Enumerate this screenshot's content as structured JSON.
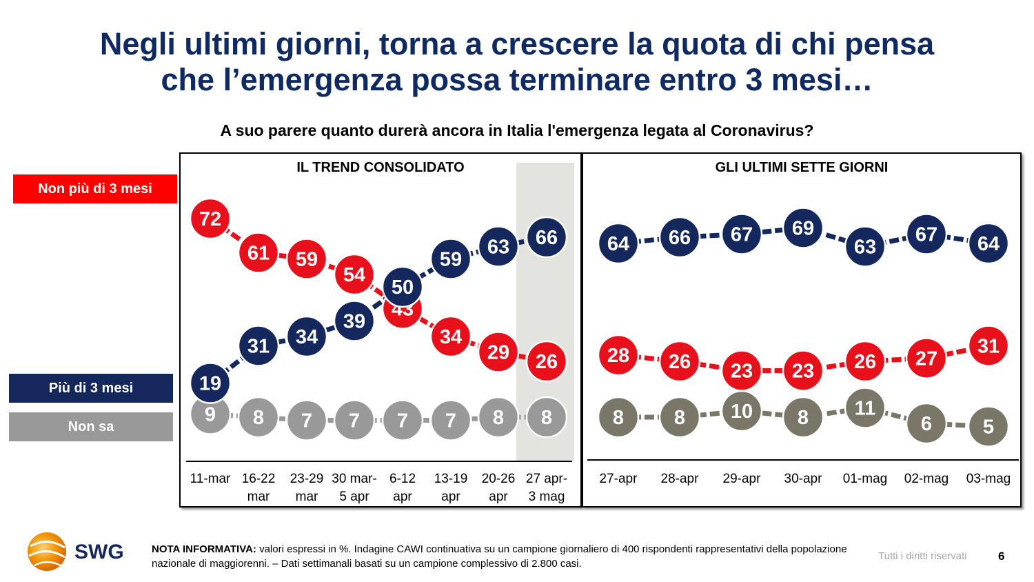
{
  "title": {
    "line1": "Negli ultimi giorni, torna a crescere la quota di chi pensa",
    "line2": "che l’emergenza possa terminare entro 3 mesi…",
    "color": "#0f2a63"
  },
  "question": "A suo parere quanto durerà ancora in Italia l'emergenza legata al Coronavirus?",
  "legend": {
    "non_piu": {
      "label": "Non più di 3 mesi",
      "color": "#ff0000"
    },
    "piu": {
      "label": "Più di 3 mesi",
      "color": "#14285e"
    },
    "non_sa": {
      "label": "Non sa",
      "color": "#999999"
    }
  },
  "chart_data": [
    {
      "type": "line",
      "title": "IL TREND CONSOLIDATO",
      "categories": [
        "11-mar",
        "16-22 mar",
        "23-29 mar",
        "30 mar-5 apr",
        "6-12 apr",
        "13-19 apr",
        "20-26 apr",
        "27 apr-3 mag"
      ],
      "category_lines": [
        [
          "11-mar"
        ],
        [
          "16-22",
          "mar"
        ],
        [
          "23-29",
          "mar"
        ],
        [
          "30 mar-",
          "5 apr"
        ],
        [
          "6-12",
          "apr"
        ],
        [
          "13-19",
          "apr"
        ],
        [
          "20-26",
          "apr"
        ],
        [
          "27 apr-",
          "3 mag"
        ]
      ],
      "series": [
        {
          "name": "Non più di 3 mesi",
          "color": "#e8101a",
          "values": [
            72,
            61,
            59,
            54,
            43,
            34,
            29,
            26
          ]
        },
        {
          "name": "Più di 3 mesi",
          "color": "#14285e",
          "values": [
            19,
            31,
            34,
            39,
            50,
            59,
            63,
            66
          ]
        },
        {
          "name": "Non sa",
          "color": "#999999",
          "values": [
            9,
            8,
            7,
            7,
            7,
            7,
            8,
            8
          ]
        }
      ],
      "highlighted_category": "27 apr-3 mag",
      "ylim": [
        0,
        80
      ]
    },
    {
      "type": "line",
      "title": "GLI ULTIMI SETTE GIORNI",
      "categories": [
        "27-apr",
        "28-apr",
        "29-apr",
        "30-apr",
        "01-mag",
        "02-mag",
        "03-mag"
      ],
      "series": [
        {
          "name": "Più di 3 mesi",
          "color": "#14285e",
          "values": [
            64,
            66,
            67,
            69,
            63,
            67,
            64
          ]
        },
        {
          "name": "Non più di 3 mesi",
          "color": "#e8101a",
          "values": [
            28,
            26,
            23,
            23,
            26,
            27,
            31
          ]
        },
        {
          "name": "Non sa",
          "color": "#7a7769",
          "values": [
            8,
            8,
            10,
            8,
            11,
            6,
            5
          ]
        }
      ]
    }
  ],
  "footer": {
    "note_label": "NOTA INFORMATIVA:",
    "note_text": " valori espressi in %. Indagine CAWI continuativa su un campione giornaliero di 400 rispondenti rappresentativi della popolazione nazionale di maggiorenni. – Dati settimanali basati su un campione complessivo di 2.800 casi.",
    "rights": "Tutti i diritti riservati",
    "page": "6",
    "logo_text": "SWG"
  }
}
